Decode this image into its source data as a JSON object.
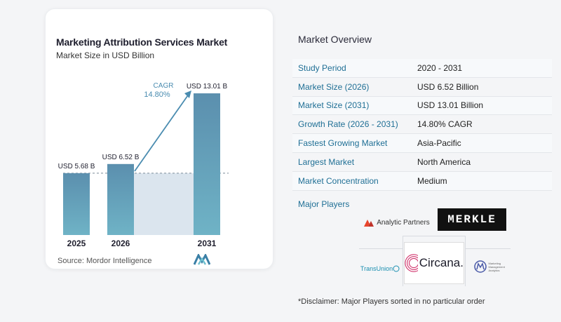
{
  "chart_data": {
    "type": "bar",
    "title": "Marketing Attribution Services Market",
    "subtitle": "Market Size in USD Billion",
    "categories": [
      "2025",
      "2026",
      "2031"
    ],
    "values": [
      5.68,
      6.52,
      13.01
    ],
    "value_labels": [
      "USD 5.68 B",
      "USD 6.52 B",
      "USD 13.01 B"
    ],
    "cagr_label": "CAGR",
    "cagr_value": "14.80%",
    "ylim": [
      0,
      14.5
    ],
    "bar_colors": [
      "#5b8fae",
      "#6fb3c6"
    ],
    "band_color": "#dbe5ee",
    "arrow_color": "#4a8cb0",
    "grid": false
  },
  "source": "Source:  Mordor Intelligence",
  "overview": {
    "title": "Market Overview",
    "rows": [
      {
        "label": "Study Period",
        "value": "2020 - 2031"
      },
      {
        "label": "Market Size (2026)",
        "value": "USD 6.52 Billion"
      },
      {
        "label": "Market Size (2031)",
        "value": "USD 13.01 Billion"
      },
      {
        "label": "Growth Rate (2026 - 2031)",
        "value": "14.80% CAGR"
      },
      {
        "label": "Fastest Growing Market",
        "value": "Asia-Pacific"
      },
      {
        "label": "Largest Market",
        "value": "North America"
      },
      {
        "label": "Market Concentration",
        "value": "Medium"
      }
    ]
  },
  "players": {
    "title": "Major Players",
    "logos": {
      "analytic": "Analytic Partners",
      "merkle": "MERKLE",
      "circana": "Circana.",
      "transunion": "TransUnion",
      "mmm": "Marketing Management Analytics"
    }
  },
  "disclaimer": "*Disclaimer: Major Players sorted in no particular order"
}
